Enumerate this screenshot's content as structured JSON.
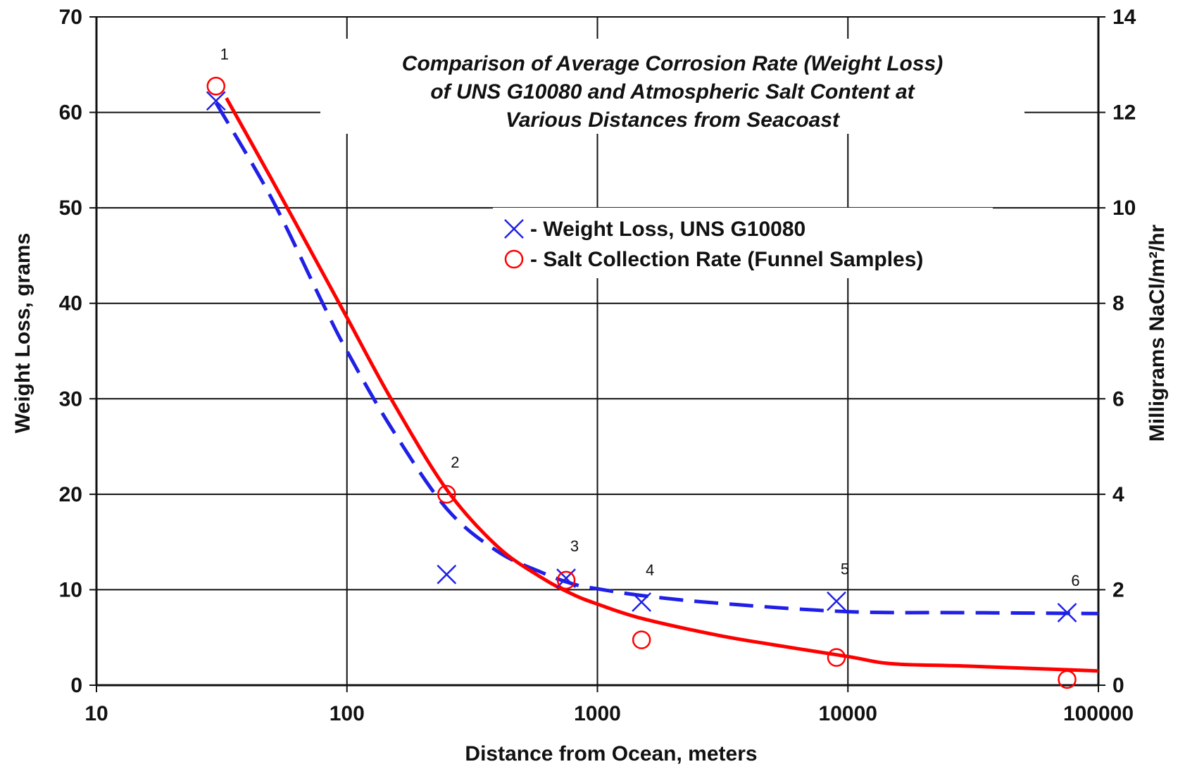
{
  "chart_data": {
    "type": "scatter",
    "title_lines": [
      "Comparison of Average Corrosion Rate (Weight Loss)",
      "of UNS G10080 and Atmospheric Salt Content at",
      "Various Distances from Seacoast"
    ],
    "xlabel": "Distance from Ocean, meters",
    "ylabel": "Weight Loss, grams",
    "y2label": "Milligrams NaCl/m²/hr",
    "x_scale": "log",
    "xlim": [
      10,
      100000
    ],
    "ylim": [
      0,
      70
    ],
    "y2lim": [
      0,
      14
    ],
    "x_ticks": [
      "10",
      "100",
      "1000",
      "10000",
      "100000"
    ],
    "y_ticks": [
      "0",
      "10",
      "20",
      "30",
      "40",
      "50",
      "60",
      "70"
    ],
    "y2_ticks": [
      "0",
      "2",
      "4",
      "6",
      "8",
      "10",
      "12",
      "14"
    ],
    "grid": true,
    "legend_position": "center-right",
    "legend": [
      {
        "marker": "X",
        "label": "- Weight Loss, UNS G10080",
        "color": "#1f1fe6"
      },
      {
        "marker": "O",
        "label": "- Salt Collection Rate (Funnel Samples)",
        "color": "#ff0000"
      }
    ],
    "point_labels": [
      "1",
      "2",
      "3",
      "4",
      "5",
      "6"
    ],
    "series": [
      {
        "name": "Weight Loss, UNS G10080",
        "axis": "left",
        "color": "#1f1fe6",
        "marker": "x",
        "x": [
          30,
          250,
          750,
          1500,
          9000,
          75000
        ],
        "y": [
          61.2,
          11.6,
          11.2,
          8.7,
          8.8,
          7.6
        ]
      },
      {
        "name": "Salt Collection Rate (Funnel Samples)",
        "axis": "right",
        "color": "#ff0000",
        "marker": "o",
        "x": [
          30,
          250,
          750,
          1500,
          9000,
          75000
        ],
        "y": [
          12.55,
          4.0,
          2.2,
          0.95,
          0.58,
          0.12
        ]
      }
    ],
    "trend_lines": [
      {
        "series": "Weight Loss, UNS G10080",
        "axis": "left",
        "style": "dashed",
        "color": "#1f1fe6",
        "x": [
          30,
          50,
          80,
          100,
          150,
          250,
          400,
          600,
          800,
          1000,
          1500,
          3000,
          10000,
          30000,
          100000
        ],
        "y": [
          61,
          51,
          40,
          35,
          27,
          18.5,
          14,
          11.8,
          10.6,
          10.1,
          9.4,
          8.6,
          7.7,
          7.6,
          7.5
        ]
      },
      {
        "series": "Salt Collection Rate (Funnel Samples)",
        "axis": "right",
        "style": "solid",
        "color": "#ff0000",
        "x": [
          33,
          50,
          70,
          100,
          150,
          250,
          400,
          600,
          800,
          1000,
          1500,
          3000,
          5000,
          10000,
          15000,
          30000,
          100000
        ],
        "y": [
          12.3,
          10.6,
          9.2,
          7.7,
          6.0,
          4.1,
          2.9,
          2.25,
          1.9,
          1.7,
          1.4,
          1.05,
          0.85,
          0.6,
          0.45,
          0.4,
          0.3
        ]
      }
    ]
  }
}
